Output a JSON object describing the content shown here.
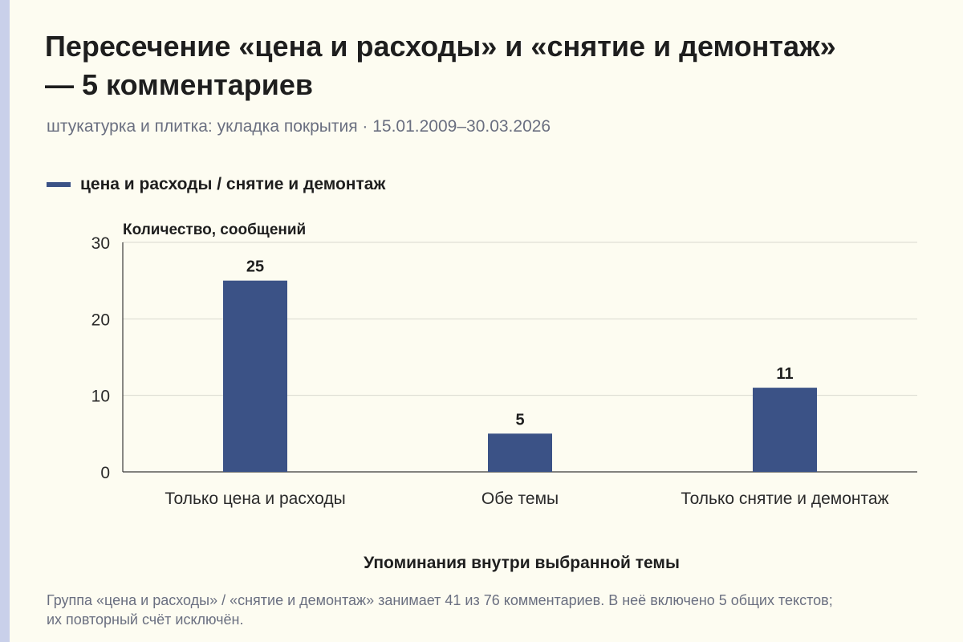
{
  "title": "Пересечение «цена и расходы» и «снятие и демонтаж» — 5 комментариев",
  "subtitle": "штукатурка и плитка: укладка покрытия · 15.01.2009–30.03.2026",
  "footnote": "Группа «цена и расходы» / «снятие и демонтаж» занимает 41 из 76 комментариев. В неё включено 5 общих текстов; их повторный счёт исключён.",
  "colors": {
    "bar": "#3b5286",
    "grid": "#d9d9d0",
    "axis": "#3a3a3a",
    "text": "#1e1e1e"
  },
  "chart_data": {
    "type": "bar",
    "title": "Пересечение «цена и расходы» и «снятие и демонтаж» — 5 комментариев",
    "subtitle": "штукатурка и плитка: укладка покрытия · 15.01.2009–30.03.2026",
    "xlabel": "Упоминания внутри выбранной темы",
    "ylabel": "Количество, сообщений",
    "categories": [
      "Только цена и расходы",
      "Обе темы",
      "Только снятие и демонтаж"
    ],
    "series": [
      {
        "name": "цена и расходы / снятие и демонтаж",
        "values": [
          25,
          5,
          11
        ]
      }
    ],
    "data_labels": [
      "25",
      "5",
      "11"
    ],
    "ylim": [
      0,
      30
    ],
    "yticks": [
      0,
      10,
      20,
      30
    ],
    "grid": true,
    "legend": "top-left"
  }
}
